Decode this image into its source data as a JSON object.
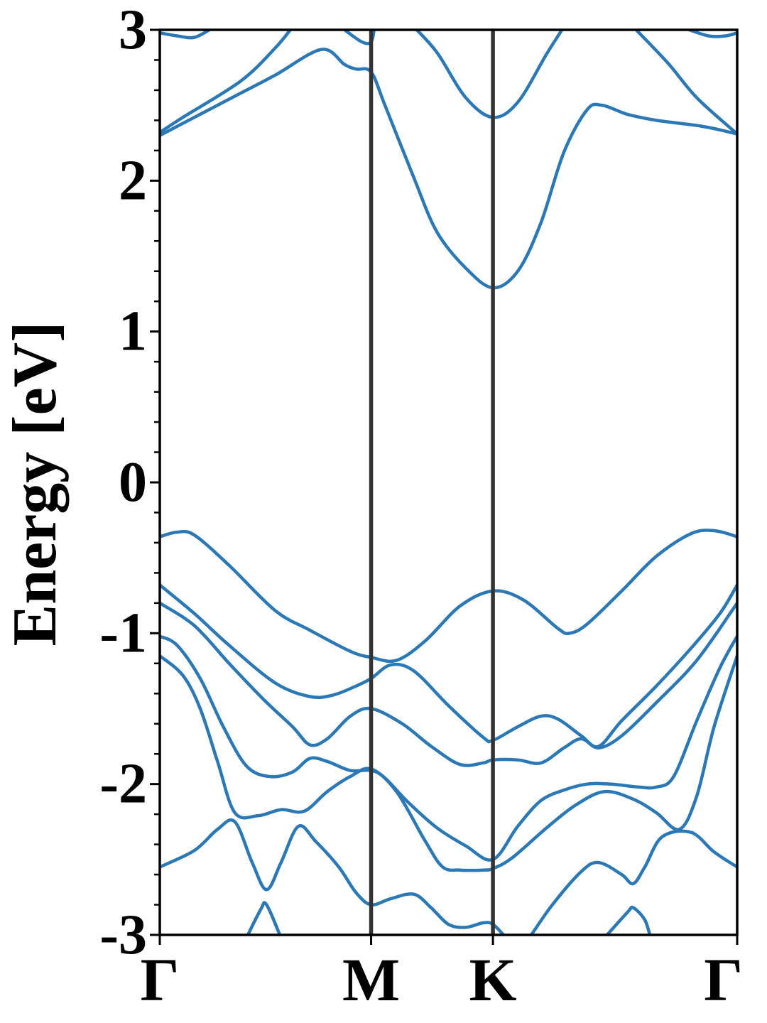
{
  "chart_data": {
    "type": "line",
    "title": "",
    "xlabel": "",
    "ylabel": "Energy [eV]",
    "xlim": [
      0,
      1
    ],
    "ylim": [
      -3,
      3
    ],
    "grid": false,
    "legend": "none",
    "colors": {
      "band": "#2b78b7",
      "high_symmetry_line": "#333333",
      "frame": "#000000"
    },
    "yticks": [
      {
        "value": 3,
        "label": "3"
      },
      {
        "value": 2,
        "label": "2"
      },
      {
        "value": 1,
        "label": "1"
      },
      {
        "value": 0,
        "label": "0"
      },
      {
        "value": -1,
        "label": "-1"
      },
      {
        "value": -2,
        "label": "-2"
      },
      {
        "value": -3,
        "label": "-3"
      }
    ],
    "yminor_step": 0.2,
    "kpoints": [
      {
        "label": "Γ",
        "x": 0.0
      },
      {
        "label": "M",
        "x": 0.366
      },
      {
        "label": "K",
        "x": 0.577
      },
      {
        "label": "Γ",
        "x": 1.0
      }
    ],
    "high_symmetry_lines": [
      0.366,
      0.577
    ],
    "series": [
      {
        "values": [
          [
            0.0,
            2.32
          ],
          [
            0.04,
            2.42
          ],
          [
            0.14,
            2.66
          ],
          [
            0.2,
            2.88
          ],
          [
            0.23,
            3.02
          ]
        ]
      },
      {
        "values": [
          [
            0.0,
            2.3
          ],
          [
            0.07,
            2.44
          ],
          [
            0.13,
            2.56
          ],
          [
            0.2,
            2.7
          ],
          [
            0.28,
            2.87
          ],
          [
            0.32,
            2.77
          ],
          [
            0.34,
            2.74
          ],
          [
            0.366,
            2.72
          ],
          [
            0.39,
            2.5
          ],
          [
            0.44,
            2.02
          ],
          [
            0.48,
            1.66
          ],
          [
            0.53,
            1.42
          ],
          [
            0.577,
            1.29
          ],
          [
            0.62,
            1.4
          ],
          [
            0.66,
            1.72
          ],
          [
            0.7,
            2.19
          ],
          [
            0.74,
            2.47
          ],
          [
            0.766,
            2.5
          ],
          [
            0.81,
            2.44
          ],
          [
            0.86,
            2.4
          ],
          [
            0.94,
            2.36
          ],
          [
            1.0,
            2.31
          ]
        ]
      },
      {
        "values": [
          [
            0.32,
            3.0
          ],
          [
            0.35,
            2.92
          ],
          [
            0.366,
            2.92
          ],
          [
            0.372,
            3.02
          ]
        ]
      },
      {
        "values": [
          [
            0.44,
            3.02
          ],
          [
            0.48,
            2.85
          ],
          [
            0.53,
            2.55
          ],
          [
            0.577,
            2.42
          ],
          [
            0.62,
            2.52
          ],
          [
            0.67,
            2.84
          ],
          [
            0.7,
            3.02
          ]
        ]
      },
      {
        "values": [
          [
            0.0,
            2.98
          ],
          [
            0.03,
            2.96
          ],
          [
            0.06,
            2.95
          ],
          [
            0.09,
            3.01
          ]
        ]
      },
      {
        "values": [
          [
            0.82,
            3.02
          ],
          [
            0.88,
            2.78
          ],
          [
            0.93,
            2.55
          ],
          [
            1.0,
            2.31
          ]
        ]
      },
      {
        "values": [
          [
            0.91,
            3.01
          ],
          [
            0.95,
            2.96
          ],
          [
            0.98,
            2.96
          ],
          [
            1.0,
            2.98
          ]
        ]
      },
      {
        "values": [
          [
            0.0,
            -0.36
          ],
          [
            0.03,
            -0.33
          ],
          [
            0.06,
            -0.35
          ],
          [
            0.12,
            -0.55
          ],
          [
            0.2,
            -0.85
          ],
          [
            0.26,
            -0.98
          ],
          [
            0.33,
            -1.12
          ],
          [
            0.366,
            -1.16
          ],
          [
            0.41,
            -1.18
          ],
          [
            0.46,
            -1.05
          ],
          [
            0.52,
            -0.82
          ],
          [
            0.577,
            -0.72
          ],
          [
            0.63,
            -0.78
          ],
          [
            0.69,
            -0.97
          ],
          [
            0.71,
            -1.0
          ],
          [
            0.74,
            -0.94
          ],
          [
            0.8,
            -0.72
          ],
          [
            0.86,
            -0.49
          ],
          [
            0.92,
            -0.34
          ],
          [
            0.96,
            -0.32
          ],
          [
            1.0,
            -0.36
          ]
        ]
      },
      {
        "values": [
          [
            0.0,
            -0.68
          ],
          [
            0.06,
            -0.87
          ],
          [
            0.12,
            -1.08
          ],
          [
            0.2,
            -1.33
          ],
          [
            0.26,
            -1.42
          ],
          [
            0.3,
            -1.41
          ],
          [
            0.34,
            -1.35
          ],
          [
            0.366,
            -1.3
          ],
          [
            0.4,
            -1.21
          ],
          [
            0.44,
            -1.25
          ],
          [
            0.5,
            -1.48
          ],
          [
            0.56,
            -1.69
          ],
          [
            0.577,
            -1.71
          ],
          [
            0.62,
            -1.62
          ],
          [
            0.66,
            -1.55
          ],
          [
            0.69,
            -1.57
          ],
          [
            0.73,
            -1.68
          ],
          [
            0.76,
            -1.75
          ],
          [
            0.8,
            -1.58
          ],
          [
            0.86,
            -1.35
          ],
          [
            0.92,
            -1.1
          ],
          [
            0.97,
            -0.87
          ],
          [
            1.0,
            -0.68
          ]
        ]
      },
      {
        "values": [
          [
            0.0,
            -0.8
          ],
          [
            0.06,
            -0.95
          ],
          [
            0.12,
            -1.2
          ],
          [
            0.18,
            -1.44
          ],
          [
            0.23,
            -1.62
          ],
          [
            0.26,
            -1.74
          ],
          [
            0.29,
            -1.7
          ],
          [
            0.33,
            -1.55
          ],
          [
            0.366,
            -1.5
          ],
          [
            0.42,
            -1.6
          ],
          [
            0.47,
            -1.75
          ],
          [
            0.52,
            -1.87
          ],
          [
            0.56,
            -1.86
          ],
          [
            0.577,
            -1.84
          ],
          [
            0.62,
            -1.84
          ],
          [
            0.66,
            -1.86
          ],
          [
            0.7,
            -1.76
          ],
          [
            0.73,
            -1.7
          ],
          [
            0.76,
            -1.76
          ],
          [
            0.8,
            -1.68
          ],
          [
            0.86,
            -1.46
          ],
          [
            0.93,
            -1.18
          ],
          [
            1.0,
            -0.8
          ]
        ]
      },
      {
        "values": [
          [
            0.0,
            -1.02
          ],
          [
            0.03,
            -1.08
          ],
          [
            0.07,
            -1.3
          ],
          [
            0.11,
            -1.62
          ],
          [
            0.15,
            -1.88
          ],
          [
            0.19,
            -1.95
          ],
          [
            0.23,
            -1.92
          ],
          [
            0.26,
            -1.83
          ],
          [
            0.29,
            -1.85
          ],
          [
            0.33,
            -1.91
          ],
          [
            0.366,
            -1.91
          ],
          [
            0.39,
            -1.96
          ],
          [
            0.43,
            -2.12
          ],
          [
            0.48,
            -2.29
          ],
          [
            0.53,
            -2.41
          ],
          [
            0.577,
            -2.5
          ],
          [
            0.62,
            -2.28
          ],
          [
            0.66,
            -2.11
          ],
          [
            0.7,
            -2.04
          ],
          [
            0.74,
            -2.0
          ],
          [
            0.78,
            -2.0
          ],
          [
            0.83,
            -2.02
          ],
          [
            0.86,
            -2.02
          ],
          [
            0.89,
            -1.95
          ],
          [
            0.93,
            -1.58
          ],
          [
            0.97,
            -1.23
          ],
          [
            1.0,
            -1.02
          ]
        ]
      },
      {
        "values": [
          [
            0.0,
            -1.15
          ],
          [
            0.04,
            -1.28
          ],
          [
            0.07,
            -1.5
          ],
          [
            0.1,
            -1.85
          ],
          [
            0.13,
            -2.19
          ],
          [
            0.17,
            -2.21
          ],
          [
            0.21,
            -2.17
          ],
          [
            0.25,
            -2.18
          ],
          [
            0.29,
            -2.05
          ],
          [
            0.33,
            -1.95
          ],
          [
            0.366,
            -1.9
          ],
          [
            0.41,
            -2.05
          ],
          [
            0.46,
            -2.38
          ],
          [
            0.49,
            -2.55
          ],
          [
            0.52,
            -2.57
          ],
          [
            0.56,
            -2.57
          ],
          [
            0.577,
            -2.56
          ],
          [
            0.61,
            -2.49
          ],
          [
            0.67,
            -2.29
          ],
          [
            0.72,
            -2.14
          ],
          [
            0.77,
            -2.05
          ],
          [
            0.82,
            -2.1
          ],
          [
            0.86,
            -2.19
          ],
          [
            0.9,
            -2.3
          ],
          [
            0.93,
            -2.08
          ],
          [
            0.96,
            -1.62
          ],
          [
            1.0,
            -1.15
          ]
        ]
      },
      {
        "values": [
          [
            0.0,
            -2.55
          ],
          [
            0.06,
            -2.44
          ],
          [
            0.1,
            -2.3
          ],
          [
            0.13,
            -2.25
          ],
          [
            0.16,
            -2.52
          ],
          [
            0.185,
            -2.7
          ],
          [
            0.21,
            -2.52
          ],
          [
            0.24,
            -2.28
          ],
          [
            0.27,
            -2.38
          ],
          [
            0.31,
            -2.55
          ],
          [
            0.34,
            -2.72
          ],
          [
            0.366,
            -2.8
          ],
          [
            0.4,
            -2.76
          ],
          [
            0.44,
            -2.73
          ],
          [
            0.47,
            -2.82
          ],
          [
            0.5,
            -2.93
          ],
          [
            0.53,
            -2.95
          ],
          [
            0.56,
            -2.92
          ],
          [
            0.577,
            -2.93
          ],
          [
            0.6,
            -3.02
          ]
        ]
      },
      {
        "values": [
          [
            0.15,
            -3.02
          ],
          [
            0.175,
            -2.83
          ],
          [
            0.185,
            -2.8
          ],
          [
            0.21,
            -3.02
          ]
        ]
      },
      {
        "values": [
          [
            0.64,
            -3.02
          ],
          [
            0.68,
            -2.8
          ],
          [
            0.73,
            -2.58
          ],
          [
            0.76,
            -2.52
          ],
          [
            0.8,
            -2.6
          ],
          [
            0.82,
            -2.66
          ],
          [
            0.84,
            -2.55
          ],
          [
            0.87,
            -2.35
          ],
          [
            0.92,
            -2.32
          ],
          [
            0.96,
            -2.45
          ],
          [
            1.0,
            -2.55
          ]
        ]
      },
      {
        "values": [
          [
            0.77,
            -3.02
          ],
          [
            0.81,
            -2.85
          ],
          [
            0.82,
            -2.82
          ],
          [
            0.84,
            -2.9
          ],
          [
            0.85,
            -3.02
          ]
        ]
      }
    ]
  }
}
